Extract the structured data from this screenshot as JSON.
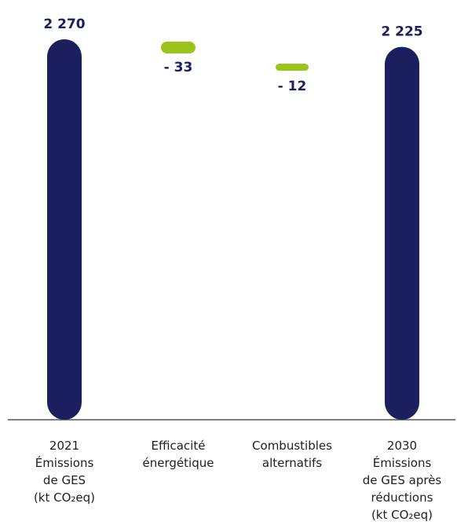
{
  "chart_data": {
    "type": "bar",
    "subtype": "waterfall",
    "categories": [
      [
        "2021",
        "Émissions",
        "de GES",
        "(kt CO₂eq)"
      ],
      [
        "Efficacité",
        "énergétique"
      ],
      [
        "Combustibles",
        "alternatifs"
      ],
      [
        "2030",
        "Émissions",
        "de GES après",
        "réductions",
        "(kt CO₂eq)"
      ]
    ],
    "values": [
      2270,
      -33,
      -12,
      2225
    ],
    "value_labels": [
      "2 270",
      "- 33",
      "- 12",
      "2 225"
    ],
    "bar_kinds": [
      "total",
      "decrease",
      "decrease",
      "total"
    ],
    "ylim": [
      0,
      2270
    ],
    "grid": false,
    "legend": "none",
    "colors": {
      "total": "#1b1f5e",
      "decrease": "#9ac31c",
      "label": "#1b1f5e",
      "axis": "#555555"
    }
  }
}
